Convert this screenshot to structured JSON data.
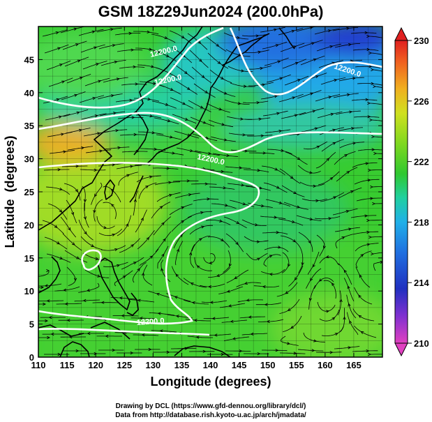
{
  "chart_data": {
    "type": "heatmap",
    "title": "GSM 18Z29Jun2024 (200.0hPa)",
    "xlabel": "Longitude (degrees)",
    "ylabel": "Latitude  (degrees)",
    "xlim": [
      110,
      170
    ],
    "ylim": [
      0,
      50
    ],
    "x_ticks": [
      110,
      115,
      120,
      125,
      130,
      135,
      140,
      145,
      150,
      155,
      160,
      165
    ],
    "y_ticks": [
      0,
      5,
      10,
      15,
      20,
      25,
      30,
      35,
      40,
      45
    ],
    "grid": true,
    "colorbar": {
      "min": 210,
      "max": 230,
      "ticks": [
        210,
        214,
        218,
        222,
        226,
        230
      ],
      "palette": [
        "#e040c0",
        "#8030d0",
        "#2030c0",
        "#2070e0",
        "#20b0e8",
        "#20d0a0",
        "#30c830",
        "#80d820",
        "#d0e020",
        "#f0b020",
        "#f06020",
        "#e02020"
      ]
    },
    "contour_labels": [
      "12200.0",
      "12200.0",
      "12200.0",
      "12200.0",
      "12200.0"
    ],
    "credits": [
      "Drawing by DCL (https://www.gfd-dennou.org/library/dcl/)",
      "Data from http://database.rish.kyoto-u.ac.jp/arch/jmadata/"
    ]
  }
}
